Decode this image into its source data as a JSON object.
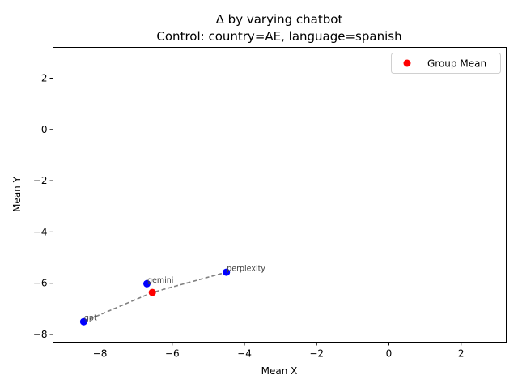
{
  "chart_data": {
    "type": "scatter",
    "title": "Δ by varying chatbot",
    "subtitle": "Control: country=AE, language=spanish",
    "xlabel": "Mean X",
    "ylabel": "Mean Y",
    "xlim": [
      -9.3,
      3.25
    ],
    "ylim": [
      -8.3,
      3.2
    ],
    "xticks": [
      -8,
      -6,
      -4,
      -2,
      0,
      2
    ],
    "yticks": [
      -8,
      -6,
      -4,
      -2,
      0,
      2
    ],
    "xtick_labels": [
      "−8",
      "−6",
      "−4",
      "−2",
      "0",
      "2"
    ],
    "ytick_labels": [
      "−8",
      "−6",
      "−4",
      "−2",
      "0",
      "2"
    ],
    "grid": false,
    "legend_position": "top-right",
    "series": [
      {
        "name": "",
        "color": "#0000ff",
        "points": [
          {
            "label": "gpt",
            "x": -8.45,
            "y": -7.5
          },
          {
            "label": "gemini",
            "x": -6.7,
            "y": -6.02
          },
          {
            "label": "perplexity",
            "x": -4.5,
            "y": -5.57
          }
        ]
      },
      {
        "name": "Group Mean",
        "color": "#ff0000",
        "points": [
          {
            "label": "",
            "x": -6.55,
            "y": -6.36
          }
        ]
      }
    ],
    "connector": {
      "style": "dashed",
      "color": "#808080",
      "path": [
        {
          "x": -8.45,
          "y": -7.5
        },
        {
          "x": -6.55,
          "y": -6.36
        },
        {
          "x": -4.5,
          "y": -5.57
        }
      ]
    },
    "legend": {
      "entries": [
        {
          "label": "Group Mean",
          "color": "#ff0000"
        }
      ]
    }
  }
}
